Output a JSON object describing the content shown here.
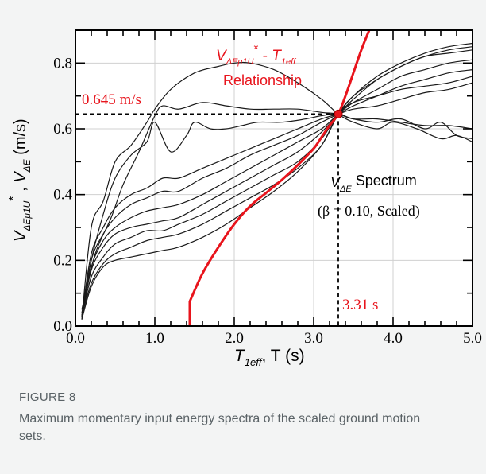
{
  "figure": {
    "label": "FIGURE 8",
    "caption": "Maximum momentary input energy spectra of the scaled ground motion sets."
  },
  "colors": {
    "background": "#f3f4f4",
    "spectra": "#1a1a1a",
    "relationship": "#e8141c",
    "reference": "#000000",
    "annotation_red": "#e8141c",
    "caption": "#5a6266"
  },
  "chart_data": {
    "type": "line",
    "title": "",
    "xlabel": {
      "main": "T",
      "sub": "1eff",
      "rest": ", T (s)"
    },
    "ylabel": {
      "v1": "V",
      "sub1": "ΔEμ1U",
      "sup1": "*",
      "sep": " , ",
      "v2": "V",
      "sub2": "ΔE",
      "units": " (m/s)"
    },
    "xlim": [
      0,
      5
    ],
    "ylim": [
      0,
      0.9
    ],
    "xticks": [
      0,
      1,
      2,
      3,
      4,
      5
    ],
    "xtick_labels": [
      "0.0",
      "1.0",
      "2.0",
      "3.0",
      "4.0",
      "5.0"
    ],
    "yticks": [
      0,
      0.2,
      0.4,
      0.6,
      0.8
    ],
    "ytick_labels": [
      "0.0",
      "0.2",
      "0.4",
      "0.6",
      "0.8"
    ],
    "grid": true,
    "annotations": {
      "relationship_v": "V",
      "relationship_sub": "ΔEμ1U",
      "relationship_sup": "*",
      "relationship_dash": " - ",
      "relationship_t": "T",
      "relationship_tsub": "1eff",
      "relationship_word": "Relationship",
      "value_label": "0.645 m/s",
      "period_label": "3.31 s",
      "spectrum_v": "V",
      "spectrum_sub": "ΔE",
      "spectrum_word": " Spectrum",
      "spectrum_params": "(β = 0.10, Scaled)"
    },
    "intersection": {
      "x": 3.31,
      "y": 0.645
    },
    "relationship_curve": {
      "x": [
        1.44,
        1.44,
        1.6,
        1.8,
        2.0,
        2.2,
        2.4,
        2.6,
        2.8,
        3.0,
        3.1,
        3.2,
        3.31,
        3.4,
        3.5,
        3.6,
        3.7
      ],
      "y": [
        0.0,
        0.075,
        0.16,
        0.24,
        0.31,
        0.365,
        0.405,
        0.445,
        0.49,
        0.54,
        0.575,
        0.61,
        0.645,
        0.7,
        0.77,
        0.84,
        0.9
      ]
    },
    "series": [
      {
        "x": [
          0.08,
          0.2,
          0.35,
          0.5,
          0.7,
          0.9,
          1.0,
          1.2,
          1.5,
          1.8,
          2.0,
          2.2,
          2.5,
          2.8,
          3.1,
          3.31,
          3.5,
          3.8,
          4.0,
          4.3,
          4.6,
          4.8,
          5.0
        ],
        "y": [
          0.02,
          0.3,
          0.38,
          0.5,
          0.55,
          0.62,
          0.66,
          0.72,
          0.77,
          0.79,
          0.8,
          0.8,
          0.78,
          0.74,
          0.69,
          0.645,
          0.62,
          0.6,
          0.62,
          0.6,
          0.57,
          0.58,
          0.56
        ]
      },
      {
        "x": [
          0.08,
          0.25,
          0.45,
          0.6,
          0.8,
          1.0,
          1.1,
          1.3,
          1.6,
          1.9,
          2.2,
          2.5,
          2.8,
          3.1,
          3.31,
          3.5,
          3.8,
          4.1,
          4.4,
          4.7,
          5.0
        ],
        "y": [
          0.05,
          0.22,
          0.33,
          0.43,
          0.53,
          0.64,
          0.67,
          0.66,
          0.68,
          0.67,
          0.66,
          0.66,
          0.66,
          0.65,
          0.645,
          0.63,
          0.63,
          0.62,
          0.61,
          0.61,
          0.6
        ]
      },
      {
        "x": [
          0.08,
          0.2,
          0.35,
          0.5,
          0.7,
          0.9,
          1.0,
          1.2,
          1.4,
          1.5,
          1.7,
          1.9,
          2.1,
          2.3,
          2.6,
          2.9,
          3.1,
          3.31,
          3.5,
          3.8,
          4.1,
          4.4,
          4.6,
          4.8,
          5.0
        ],
        "y": [
          0.03,
          0.2,
          0.34,
          0.45,
          0.52,
          0.56,
          0.62,
          0.53,
          0.58,
          0.62,
          0.6,
          0.6,
          0.61,
          0.62,
          0.62,
          0.63,
          0.64,
          0.645,
          0.63,
          0.62,
          0.63,
          0.6,
          0.62,
          0.58,
          0.57
        ]
      },
      {
        "x": [
          0.08,
          0.2,
          0.35,
          0.5,
          0.7,
          0.9,
          1.1,
          1.3,
          1.6,
          1.9,
          2.2,
          2.5,
          2.8,
          3.1,
          3.31,
          3.5,
          3.8,
          4.1,
          4.4,
          4.7,
          5.0
        ],
        "y": [
          0.03,
          0.22,
          0.3,
          0.36,
          0.4,
          0.42,
          0.45,
          0.45,
          0.48,
          0.51,
          0.54,
          0.57,
          0.6,
          0.63,
          0.645,
          0.66,
          0.67,
          0.69,
          0.71,
          0.72,
          0.74
        ]
      },
      {
        "x": [
          0.08,
          0.2,
          0.35,
          0.5,
          0.7,
          0.9,
          1.1,
          1.3,
          1.6,
          1.9,
          2.2,
          2.5,
          2.8,
          3.1,
          3.31,
          3.5,
          3.8,
          4.1,
          4.4,
          4.7,
          5.0
        ],
        "y": [
          0.03,
          0.2,
          0.28,
          0.33,
          0.37,
          0.39,
          0.41,
          0.41,
          0.45,
          0.48,
          0.52,
          0.55,
          0.58,
          0.62,
          0.645,
          0.67,
          0.7,
          0.73,
          0.75,
          0.77,
          0.78
        ]
      },
      {
        "x": [
          0.08,
          0.2,
          0.35,
          0.5,
          0.7,
          0.9,
          1.1,
          1.3,
          1.6,
          1.9,
          2.2,
          2.5,
          2.8,
          3.1,
          3.31,
          3.5,
          3.8,
          4.1,
          4.4,
          4.7,
          5.0
        ],
        "y": [
          0.04,
          0.18,
          0.26,
          0.3,
          0.33,
          0.35,
          0.36,
          0.37,
          0.4,
          0.44,
          0.48,
          0.52,
          0.56,
          0.6,
          0.645,
          0.68,
          0.72,
          0.76,
          0.78,
          0.8,
          0.81
        ]
      },
      {
        "x": [
          0.08,
          0.2,
          0.35,
          0.5,
          0.7,
          0.9,
          1.1,
          1.3,
          1.6,
          1.9,
          2.2,
          2.5,
          2.8,
          3.1,
          3.31,
          3.5,
          3.8,
          4.1,
          4.4,
          4.7,
          5.0
        ],
        "y": [
          0.03,
          0.17,
          0.24,
          0.28,
          0.3,
          0.31,
          0.32,
          0.33,
          0.37,
          0.41,
          0.45,
          0.49,
          0.53,
          0.59,
          0.645,
          0.69,
          0.75,
          0.79,
          0.82,
          0.83,
          0.84
        ]
      },
      {
        "x": [
          0.08,
          0.2,
          0.35,
          0.5,
          0.7,
          0.9,
          1.1,
          1.3,
          1.6,
          1.9,
          2.2,
          2.5,
          2.8,
          3.1,
          3.31,
          3.5,
          3.8,
          4.1,
          4.4,
          4.7,
          5.0
        ],
        "y": [
          0.03,
          0.15,
          0.21,
          0.25,
          0.27,
          0.29,
          0.29,
          0.31,
          0.34,
          0.38,
          0.42,
          0.46,
          0.5,
          0.57,
          0.645,
          0.7,
          0.76,
          0.8,
          0.83,
          0.85,
          0.86
        ]
      },
      {
        "x": [
          0.08,
          0.2,
          0.35,
          0.5,
          0.7,
          0.9,
          1.1,
          1.3,
          1.6,
          1.9,
          2.2,
          2.5,
          2.8,
          3.1,
          3.31,
          3.5,
          3.8,
          4.1,
          4.4,
          4.7,
          5.0
        ],
        "y": [
          0.03,
          0.13,
          0.19,
          0.22,
          0.24,
          0.26,
          0.27,
          0.28,
          0.31,
          0.35,
          0.39,
          0.43,
          0.48,
          0.55,
          0.645,
          0.7,
          0.75,
          0.79,
          0.82,
          0.84,
          0.85
        ]
      },
      {
        "x": [
          0.08,
          0.2,
          0.35,
          0.5,
          0.7,
          0.9,
          1.1,
          1.3,
          1.6,
          1.9,
          2.2,
          2.5,
          2.8,
          3.1,
          3.31,
          3.5,
          3.8,
          4.1,
          4.4,
          4.7,
          5.0
        ],
        "y": [
          0.02,
          0.12,
          0.18,
          0.2,
          0.21,
          0.22,
          0.23,
          0.24,
          0.27,
          0.31,
          0.36,
          0.41,
          0.47,
          0.55,
          0.645,
          0.68,
          0.7,
          0.72,
          0.73,
          0.74,
          0.76
        ]
      }
    ]
  }
}
